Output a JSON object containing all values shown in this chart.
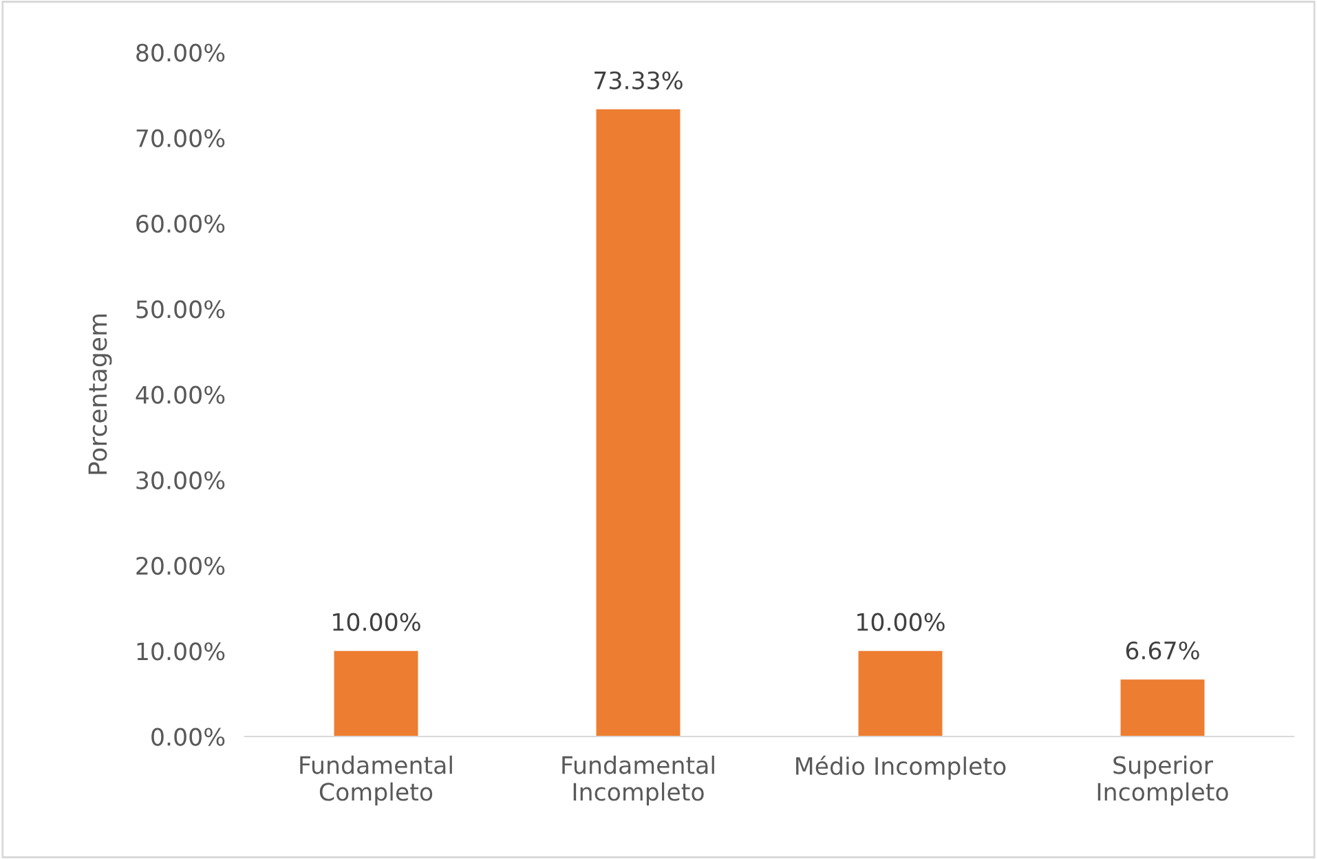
{
  "chart_data": {
    "type": "bar",
    "ylabel": "Porcentagem",
    "categories": [
      "Fundamental\nCompleto",
      "Fundamental\nIncompleto",
      "Médio Incompleto",
      "Superior\nIncompleto"
    ],
    "values": [
      10.0,
      73.33,
      10.0,
      6.67
    ],
    "value_labels": [
      "10.00%",
      "73.33%",
      "10.00%",
      "6.67%"
    ],
    "color": "#ed7d31",
    "ylim": [
      0,
      80
    ],
    "yticks": [
      {
        "value": 0,
        "label": "0.00%"
      },
      {
        "value": 10,
        "label": "10.00%"
      },
      {
        "value": 20,
        "label": "20.00%"
      },
      {
        "value": 30,
        "label": "30.00%"
      },
      {
        "value": 40,
        "label": "40.00%"
      },
      {
        "value": 50,
        "label": "50.00%"
      },
      {
        "value": 60,
        "label": "60.00%"
      },
      {
        "value": 70,
        "label": "70.00%"
      },
      {
        "value": 80,
        "label": "80.00%"
      }
    ],
    "grid": false,
    "legend": false
  }
}
